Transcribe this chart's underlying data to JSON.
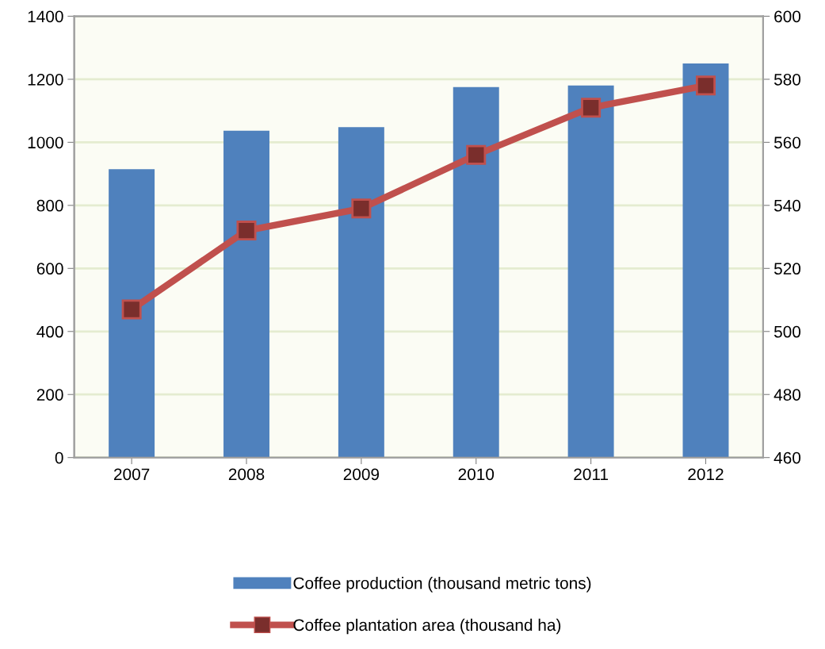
{
  "chart_data": {
    "type": "bar",
    "categories": [
      "2007",
      "2008",
      "2009",
      "2010",
      "2011",
      "2012"
    ],
    "series": [
      {
        "name": "Coffee production (thousand metric tons)",
        "color": "#4f81bd",
        "values": [
          915,
          1037,
          1048,
          1175,
          1180,
          1250
        ]
      },
      {
        "name": "Coffee plantation area (thousand ha)",
        "type": "line",
        "axis": "y2",
        "color": "#c0504d",
        "marker": "square",
        "values": [
          507,
          532,
          539,
          556,
          571,
          578
        ]
      }
    ],
    "ylim": [
      0,
      1400
    ],
    "yticks": [
      0,
      200,
      400,
      600,
      800,
      1000,
      1200,
      1400
    ],
    "y2lim": [
      460,
      600
    ],
    "y2ticks": [
      460,
      480,
      500,
      520,
      540,
      560,
      580,
      600
    ],
    "grid": "y",
    "legend": "bottom"
  }
}
